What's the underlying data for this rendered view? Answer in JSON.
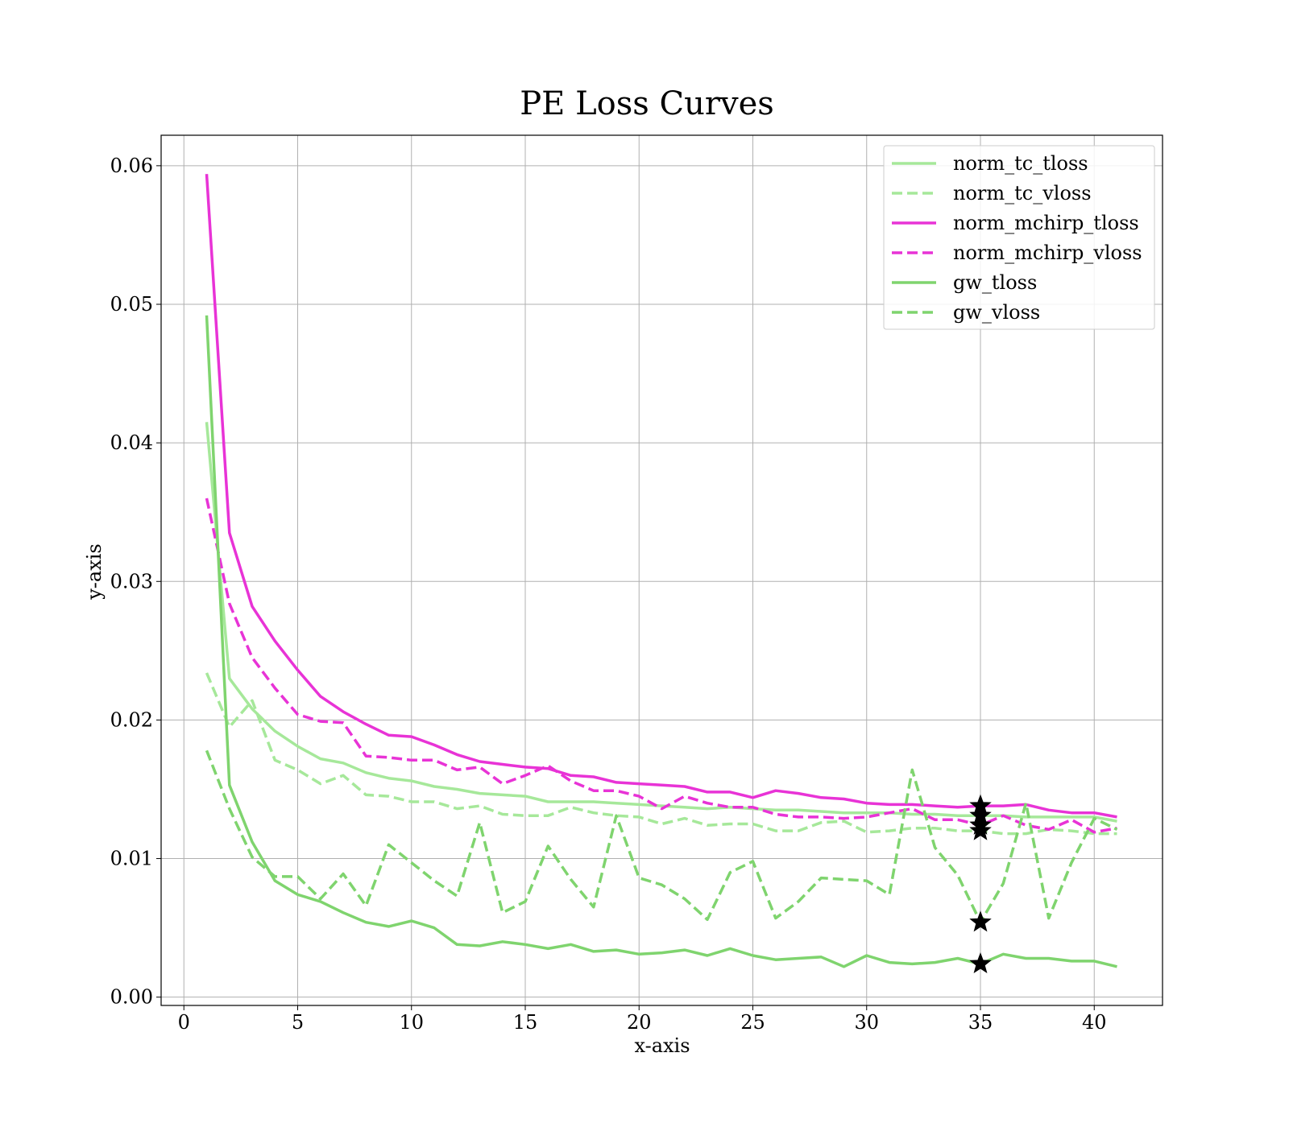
{
  "chart_data": {
    "type": "line",
    "title": "PE Loss Curves",
    "xlabel": "x-axis",
    "ylabel": "y-axis",
    "xlim": [
      -1,
      43
    ],
    "ylim": [
      -0.0006,
      0.0622
    ],
    "grid": true,
    "legend_position": "top-right",
    "x_ticks": [
      0,
      5,
      10,
      15,
      20,
      25,
      30,
      35,
      40
    ],
    "x_tick_labels": [
      "0",
      "5",
      "10",
      "15",
      "20",
      "25",
      "30",
      "35",
      "40"
    ],
    "y_ticks": [
      0.0,
      0.01,
      0.02,
      0.03,
      0.04,
      0.05,
      0.06
    ],
    "y_tick_labels": [
      "0.00",
      "0.01",
      "0.02",
      "0.03",
      "0.04",
      "0.05",
      "0.06"
    ],
    "x": [
      1,
      2,
      3,
      4,
      5,
      6,
      7,
      8,
      9,
      10,
      11,
      12,
      13,
      14,
      15,
      16,
      17,
      18,
      19,
      20,
      21,
      22,
      23,
      24,
      25,
      26,
      27,
      28,
      29,
      30,
      31,
      32,
      33,
      34,
      35,
      36,
      37,
      38,
      39,
      40,
      41
    ],
    "series": [
      {
        "name": "norm_tc_tloss",
        "color": "#a6e89a",
        "dash": "solid",
        "values": [
          0.0415,
          0.023,
          0.0208,
          0.0192,
          0.0181,
          0.0172,
          0.0169,
          0.0162,
          0.0158,
          0.0156,
          0.0152,
          0.015,
          0.0147,
          0.0146,
          0.0145,
          0.0141,
          0.0141,
          0.0141,
          0.014,
          0.0139,
          0.0138,
          0.0137,
          0.0136,
          0.0137,
          0.0136,
          0.0135,
          0.0135,
          0.0134,
          0.0133,
          0.0133,
          0.0133,
          0.0132,
          0.0132,
          0.0131,
          0.0131,
          0.0131,
          0.013,
          0.013,
          0.013,
          0.013,
          0.0127
        ]
      },
      {
        "name": "norm_tc_vloss",
        "color": "#a6e89a",
        "dash": "dashed",
        "values": [
          0.0234,
          0.0195,
          0.0214,
          0.0171,
          0.0164,
          0.0154,
          0.016,
          0.0146,
          0.0145,
          0.0141,
          0.0141,
          0.0136,
          0.0138,
          0.0132,
          0.0131,
          0.0131,
          0.0137,
          0.0133,
          0.0131,
          0.013,
          0.0125,
          0.0129,
          0.0124,
          0.0125,
          0.0125,
          0.012,
          0.012,
          0.0126,
          0.0127,
          0.0119,
          0.012,
          0.0122,
          0.0122,
          0.012,
          0.012,
          0.0118,
          0.0118,
          0.0121,
          0.012,
          0.0118,
          0.0118
        ]
      },
      {
        "name": "norm_mchirp_tloss",
        "color": "#e833d6",
        "dash": "solid",
        "values": [
          0.0594,
          0.0335,
          0.0282,
          0.0257,
          0.0236,
          0.0217,
          0.0206,
          0.0197,
          0.0189,
          0.0188,
          0.0182,
          0.0175,
          0.017,
          0.0168,
          0.0166,
          0.0165,
          0.016,
          0.0159,
          0.0155,
          0.0154,
          0.0153,
          0.0152,
          0.0148,
          0.0148,
          0.0144,
          0.0149,
          0.0147,
          0.0144,
          0.0143,
          0.014,
          0.0139,
          0.0139,
          0.0138,
          0.0137,
          0.0138,
          0.0138,
          0.0139,
          0.0135,
          0.0133,
          0.0133,
          0.013
        ]
      },
      {
        "name": "norm_mchirp_vloss",
        "color": "#e833d6",
        "dash": "dashed",
        "values": [
          0.036,
          0.0284,
          0.0245,
          0.0223,
          0.0204,
          0.0199,
          0.0198,
          0.0174,
          0.0173,
          0.0171,
          0.0171,
          0.0164,
          0.0166,
          0.0154,
          0.016,
          0.0167,
          0.0156,
          0.0149,
          0.0149,
          0.0145,
          0.0136,
          0.0145,
          0.014,
          0.0137,
          0.0137,
          0.0132,
          0.013,
          0.013,
          0.0129,
          0.013,
          0.0133,
          0.0136,
          0.0128,
          0.0128,
          0.0124,
          0.0131,
          0.0124,
          0.0121,
          0.0128,
          0.0119,
          0.0122
        ]
      },
      {
        "name": "gw_tloss",
        "color": "#7fd46e",
        "dash": "solid",
        "values": [
          0.0492,
          0.0153,
          0.0112,
          0.0084,
          0.0074,
          0.0069,
          0.0061,
          0.0054,
          0.0051,
          0.0055,
          0.005,
          0.0038,
          0.0037,
          0.004,
          0.0038,
          0.0035,
          0.0038,
          0.0033,
          0.0034,
          0.0031,
          0.0032,
          0.0034,
          0.003,
          0.0035,
          0.003,
          0.0027,
          0.0028,
          0.0029,
          0.0022,
          0.003,
          0.0025,
          0.0024,
          0.0025,
          0.0028,
          0.0024,
          0.0031,
          0.0028,
          0.0028,
          0.0026,
          0.0026,
          0.0022
        ]
      },
      {
        "name": "gw_vloss",
        "color": "#7fd46e",
        "dash": "dashed",
        "values": [
          0.0178,
          0.0136,
          0.0101,
          0.0087,
          0.0087,
          0.0071,
          0.0089,
          0.0066,
          0.011,
          0.0097,
          0.0084,
          0.0073,
          0.0126,
          0.0061,
          0.0069,
          0.0109,
          0.0085,
          0.0065,
          0.0131,
          0.0086,
          0.0081,
          0.0071,
          0.0056,
          0.009,
          0.0098,
          0.0057,
          0.0069,
          0.0086,
          0.0085,
          0.0084,
          0.0074,
          0.0164,
          0.0108,
          0.0088,
          0.0054,
          0.0082,
          0.014,
          0.0057,
          0.0097,
          0.0129,
          0.0121
        ]
      }
    ],
    "markers": [
      {
        "series": "norm_tc_tloss",
        "x": 35,
        "y": 0.0131,
        "shape": "star"
      },
      {
        "series": "norm_tc_vloss",
        "x": 35,
        "y": 0.012,
        "shape": "star"
      },
      {
        "series": "norm_mchirp_tloss",
        "x": 35,
        "y": 0.0138,
        "shape": "star"
      },
      {
        "series": "norm_mchirp_vloss",
        "x": 35,
        "y": 0.0124,
        "shape": "star"
      },
      {
        "series": "gw_tloss",
        "x": 35,
        "y": 0.0024,
        "shape": "star"
      },
      {
        "series": "gw_vloss",
        "x": 35,
        "y": 0.0054,
        "shape": "star"
      }
    ]
  }
}
